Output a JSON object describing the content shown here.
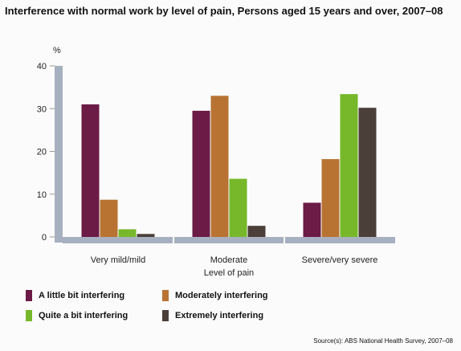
{
  "title": "Interference with normal work by level of pain, Persons aged 15 years and over, 2007–08",
  "source": "Source(s): ABS National Health Survey, 2007–08",
  "chart_data": {
    "type": "bar",
    "title": "Interference with normal work by level of pain, Persons aged 15 years and over, 2007–08",
    "ylabel": "%",
    "xlabel": "Level of pain",
    "ylim": [
      0,
      40
    ],
    "yticks": [
      0,
      10,
      20,
      30,
      40
    ],
    "grid": false,
    "legend_placement": "bottom",
    "categories": [
      "Very mild/mild",
      "Moderate",
      "Severe/very severe"
    ],
    "series": [
      {
        "name": "A little bit interfering",
        "color": "#6b1b46",
        "values": [
          31,
          29.5,
          8
        ]
      },
      {
        "name": "Moderately interfering",
        "color": "#b87333",
        "values": [
          8.7,
          33,
          18.2
        ]
      },
      {
        "name": "Quite a bit interfering",
        "color": "#76b82a",
        "values": [
          1.8,
          13.6,
          33.4
        ]
      },
      {
        "name": "Extremely interfering",
        "color": "#4b3f3a",
        "values": [
          0.7,
          2.6,
          30.2
        ]
      }
    ]
  }
}
